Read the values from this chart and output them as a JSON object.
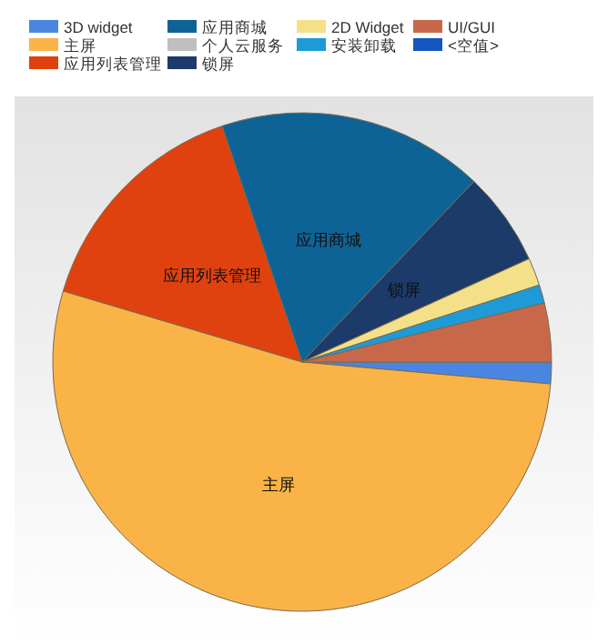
{
  "chart_data": {
    "type": "pie",
    "legend": "top",
    "categories": [
      "3D widget",
      "主屏",
      "应用列表管理",
      "应用商城",
      "个人云服务",
      "锁屏",
      "2D Widget",
      "安装卸载",
      "UI/GUI",
      "<空值>"
    ],
    "values": [
      1.4,
      53.2,
      15.2,
      17.3,
      0,
      6.1,
      1.8,
      1.2,
      3.8,
      0
    ],
    "colors": [
      "#4a86e0",
      "#f9b347",
      "#e0420f",
      "#0e6396",
      "#bfbfbf",
      "#1c3a6a",
      "#f5e08a",
      "#1e9ad6",
      "#c8684a",
      "#1656c0"
    ]
  }
}
